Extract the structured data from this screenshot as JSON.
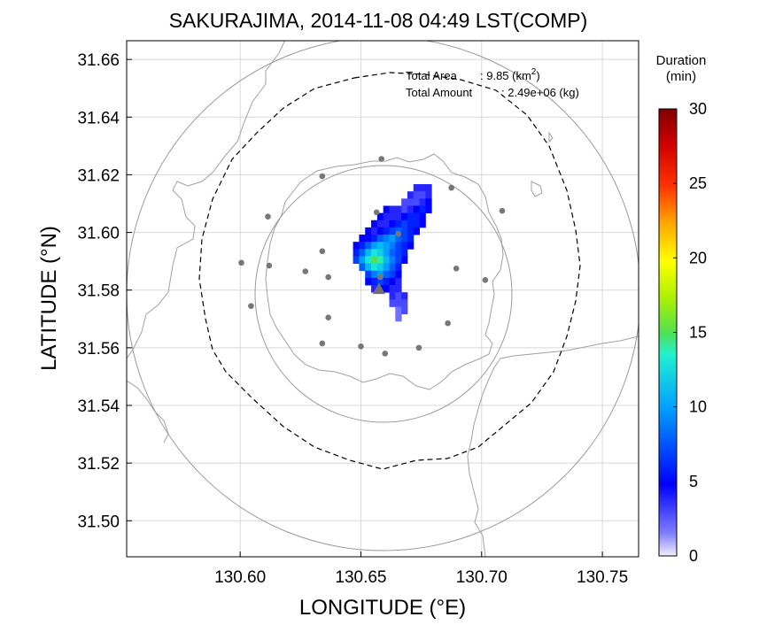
{
  "chart_data": {
    "type": "heatmap",
    "title": "SAKURAJIMA, 2014-11-08 04:49 LST(COMP)",
    "xlabel": "LONGITUDE (°E)",
    "ylabel": "LATITUDE (°N)",
    "xlim": [
      130.553,
      130.765
    ],
    "ylim": [
      31.4875,
      31.6665
    ],
    "xticks": [
      "130.60",
      "130.65",
      "130.70",
      "130.75"
    ],
    "yticks": [
      "31.50",
      "31.52",
      "31.54",
      "31.56",
      "31.58",
      "31.60",
      "31.62",
      "31.64",
      "31.66"
    ],
    "grid": true,
    "annotations": {
      "area_label": "Total Area",
      "area_value": ": 9.85 (km",
      "area_sup": "2",
      "area_close": ")",
      "amount_label": "Total Amount",
      "amount_value": ": 2.49e+06 (kg)"
    },
    "colorbar": {
      "title_line1": "Duration",
      "title_line2": "(min)",
      "min": 0,
      "max": 30,
      "ticks": [
        "0",
        "5",
        "10",
        "15",
        "20",
        "25",
        "30"
      ]
    },
    "vent": {
      "lon": 130.6575,
      "lat": 31.5805
    },
    "range_circles_km": [
      5,
      10
    ],
    "stations": [
      [
        130.6585,
        31.6255
      ],
      [
        130.634,
        31.6195
      ],
      [
        130.6875,
        31.6155
      ],
      [
        130.6115,
        31.6055
      ],
      [
        130.6565,
        31.607
      ],
      [
        130.7085,
        31.6075
      ],
      [
        130.6005,
        31.5895
      ],
      [
        130.612,
        31.5885
      ],
      [
        130.627,
        31.5865
      ],
      [
        130.634,
        31.5935
      ],
      [
        130.6655,
        31.5995
      ],
      [
        130.6895,
        31.5875
      ],
      [
        130.6365,
        31.5845
      ],
      [
        130.7015,
        31.5835
      ],
      [
        130.658,
        31.5845
      ],
      [
        130.6045,
        31.5745
      ],
      [
        130.6365,
        31.5705
      ],
      [
        130.686,
        31.5685
      ],
      [
        130.634,
        31.5615
      ],
      [
        130.65,
        31.5605
      ],
      [
        130.66,
        31.558
      ],
      [
        130.674,
        31.56
      ]
    ],
    "cell_deg": [
      0.0025,
      0.0025
    ],
    "duration_cells": [
      [
        130.678,
        31.6155,
        4
      ],
      [
        130.6755,
        31.6155,
        4
      ],
      [
        130.673,
        31.6155,
        4
      ],
      [
        130.6705,
        31.613,
        4
      ],
      [
        130.673,
        31.613,
        3
      ],
      [
        130.6755,
        31.613,
        3
      ],
      [
        130.678,
        31.613,
        4
      ],
      [
        130.668,
        31.6105,
        3
      ],
      [
        130.6705,
        31.6105,
        3
      ],
      [
        130.673,
        31.6105,
        3
      ],
      [
        130.6755,
        31.6105,
        4
      ],
      [
        130.678,
        31.6105,
        5
      ],
      [
        130.6605,
        31.608,
        5
      ],
      [
        130.663,
        31.608,
        4
      ],
      [
        130.6655,
        31.608,
        4
      ],
      [
        130.668,
        31.608,
        3
      ],
      [
        130.6705,
        31.608,
        4
      ],
      [
        130.673,
        31.608,
        5
      ],
      [
        130.6755,
        31.608,
        6
      ],
      [
        130.678,
        31.608,
        5
      ],
      [
        130.658,
        31.6055,
        5
      ],
      [
        130.6605,
        31.6055,
        4
      ],
      [
        130.663,
        31.6055,
        4
      ],
      [
        130.6655,
        31.6055,
        4
      ],
      [
        130.668,
        31.6055,
        5
      ],
      [
        130.6705,
        31.6055,
        6
      ],
      [
        130.673,
        31.6055,
        6
      ],
      [
        130.6755,
        31.6055,
        5
      ],
      [
        130.6555,
        31.603,
        5
      ],
      [
        130.658,
        31.603,
        4
      ],
      [
        130.6605,
        31.603,
        4
      ],
      [
        130.663,
        31.603,
        5
      ],
      [
        130.6655,
        31.603,
        6
      ],
      [
        130.668,
        31.603,
        7
      ],
      [
        130.6705,
        31.603,
        6
      ],
      [
        130.673,
        31.603,
        6
      ],
      [
        130.6755,
        31.603,
        5
      ],
      [
        130.653,
        31.6005,
        5
      ],
      [
        130.6555,
        31.6005,
        4
      ],
      [
        130.658,
        31.6005,
        5
      ],
      [
        130.6605,
        31.6005,
        6
      ],
      [
        130.663,
        31.6005,
        7
      ],
      [
        130.6655,
        31.6005,
        8
      ],
      [
        130.668,
        31.6005,
        7
      ],
      [
        130.6705,
        31.6005,
        6
      ],
      [
        130.673,
        31.6005,
        5
      ],
      [
        130.6505,
        31.598,
        5
      ],
      [
        130.653,
        31.598,
        5
      ],
      [
        130.6555,
        31.598,
        6
      ],
      [
        130.658,
        31.598,
        8
      ],
      [
        130.6605,
        31.598,
        9
      ],
      [
        130.663,
        31.598,
        10
      ],
      [
        130.6655,
        31.598,
        8
      ],
      [
        130.668,
        31.598,
        7
      ],
      [
        130.6705,
        31.598,
        6
      ],
      [
        130.648,
        31.5955,
        5
      ],
      [
        130.6505,
        31.5955,
        6
      ],
      [
        130.653,
        31.5955,
        8
      ],
      [
        130.6555,
        31.5955,
        10
      ],
      [
        130.658,
        31.5955,
        11
      ],
      [
        130.6605,
        31.5955,
        10
      ],
      [
        130.663,
        31.5955,
        9
      ],
      [
        130.6655,
        31.5955,
        7
      ],
      [
        130.668,
        31.5955,
        6
      ],
      [
        130.6705,
        31.5955,
        5
      ],
      [
        130.648,
        31.593,
        6
      ],
      [
        130.6505,
        31.593,
        8
      ],
      [
        130.653,
        31.593,
        11
      ],
      [
        130.6555,
        31.593,
        13
      ],
      [
        130.658,
        31.593,
        12
      ],
      [
        130.6605,
        31.593,
        10
      ],
      [
        130.663,
        31.593,
        8
      ],
      [
        130.6655,
        31.593,
        7
      ],
      [
        130.668,
        31.593,
        6
      ],
      [
        130.648,
        31.5905,
        7
      ],
      [
        130.6505,
        31.5905,
        10
      ],
      [
        130.653,
        31.5905,
        13
      ],
      [
        130.6555,
        31.5905,
        15
      ],
      [
        130.658,
        31.5905,
        14
      ],
      [
        130.6605,
        31.5905,
        11
      ],
      [
        130.663,
        31.5905,
        9
      ],
      [
        130.6655,
        31.5905,
        7
      ],
      [
        130.668,
        31.5905,
        5
      ],
      [
        130.6505,
        31.588,
        8
      ],
      [
        130.653,
        31.588,
        11
      ],
      [
        130.6555,
        31.588,
        13
      ],
      [
        130.658,
        31.588,
        12
      ],
      [
        130.6605,
        31.588,
        10
      ],
      [
        130.663,
        31.588,
        8
      ],
      [
        130.6655,
        31.588,
        6
      ],
      [
        130.653,
        31.5855,
        7
      ],
      [
        130.6555,
        31.5855,
        9
      ],
      [
        130.658,
        31.5855,
        10
      ],
      [
        130.6605,
        31.5855,
        8
      ],
      [
        130.663,
        31.5855,
        7
      ],
      [
        130.6655,
        31.5855,
        5
      ],
      [
        130.653,
        31.583,
        5
      ],
      [
        130.6555,
        31.583,
        6
      ],
      [
        130.658,
        31.583,
        7
      ],
      [
        130.6605,
        31.583,
        6
      ],
      [
        130.663,
        31.583,
        5
      ],
      [
        130.6655,
        31.583,
        4
      ],
      [
        130.6555,
        31.5805,
        4
      ],
      [
        130.658,
        31.5805,
        5
      ],
      [
        130.6605,
        31.5805,
        5
      ],
      [
        130.663,
        31.5805,
        4
      ],
      [
        130.6655,
        31.5805,
        4
      ],
      [
        130.663,
        31.578,
        4
      ],
      [
        130.6655,
        31.578,
        3
      ],
      [
        130.668,
        31.578,
        4
      ],
      [
        130.663,
        31.5755,
        3
      ],
      [
        130.6655,
        31.5755,
        3
      ],
      [
        130.668,
        31.5755,
        3
      ],
      [
        130.6655,
        31.573,
        2
      ],
      [
        130.668,
        31.573,
        3
      ],
      [
        130.6655,
        31.5705,
        2
      ]
    ]
  }
}
